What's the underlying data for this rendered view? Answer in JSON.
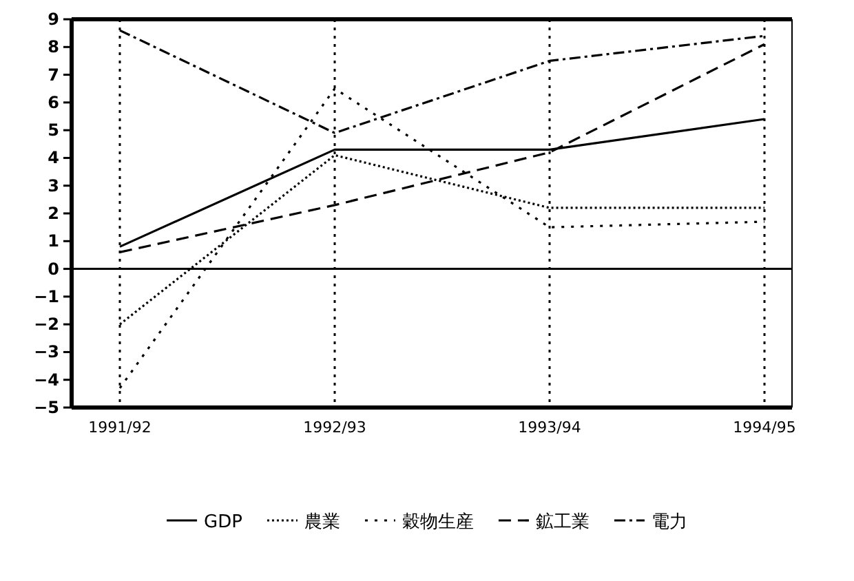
{
  "chart_data": {
    "type": "line",
    "categories": [
      "1991/92",
      "1992/93",
      "1993/94",
      "1994/95"
    ],
    "series": [
      {
        "name": "GDP",
        "color": "#000000",
        "line_style": "solid",
        "values": [
          0.8,
          4.3,
          4.3,
          5.4
        ]
      },
      {
        "name": "農業",
        "color": "#000000",
        "line_style": "dotted",
        "values": [
          -2.0,
          4.1,
          2.2,
          2.2
        ]
      },
      {
        "name": "穀物生産",
        "color": "#000000",
        "line_style": "sparse dotted",
        "values": [
          -4.3,
          6.5,
          1.5,
          1.7
        ]
      },
      {
        "name": "鉱工業",
        "color": "#000000",
        "line_style": "dashed",
        "values": [
          0.6,
          2.3,
          4.2,
          8.1
        ]
      },
      {
        "name": "電力",
        "color": "#000000",
        "line_style": "dashdot",
        "values": [
          8.6,
          4.9,
          7.5,
          8.4
        ]
      }
    ],
    "ylim": [
      -5,
      9
    ],
    "yticks": [
      -5,
      -4,
      -3,
      -2,
      -1,
      0,
      1,
      2,
      3,
      4,
      5,
      6,
      7,
      8,
      9
    ],
    "ref_lines": [
      {
        "axis": "y",
        "value": 0,
        "label": null
      }
    ],
    "grid": "x",
    "legend": "bottom"
  }
}
